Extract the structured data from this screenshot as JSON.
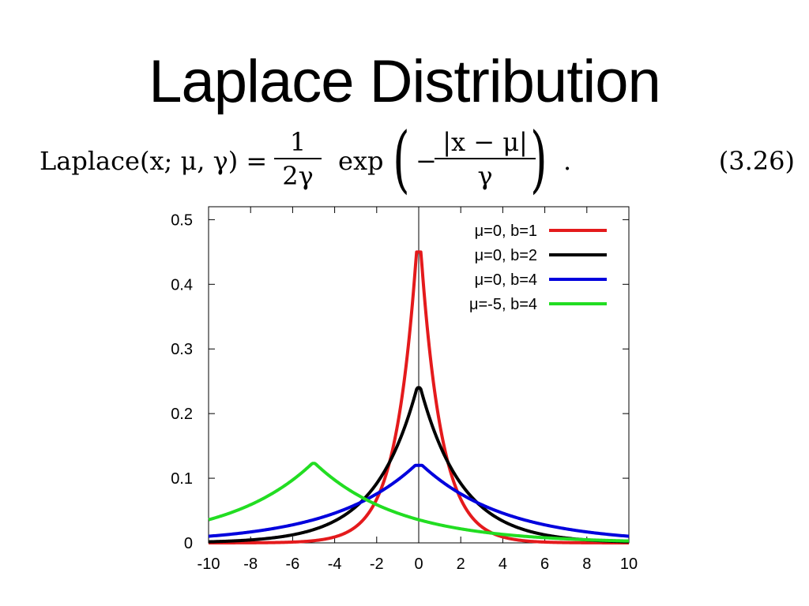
{
  "slide": {
    "title": "Laplace Distribution"
  },
  "equation": {
    "lhs": "Laplace(x; μ, γ) =",
    "frac1_num": "1",
    "frac1_den": "2γ",
    "exp": "exp",
    "minus": "−",
    "frac2_num": "|x − μ|",
    "frac2_den": "γ",
    "end": ".",
    "number": "(3.26)"
  },
  "chart_data": {
    "type": "line",
    "title": "",
    "xlabel": "",
    "ylabel": "",
    "xlim": [
      -10,
      10
    ],
    "ylim": [
      0,
      0.52
    ],
    "xticks": [
      -10,
      -8,
      -6,
      -4,
      -2,
      0,
      2,
      4,
      6,
      8,
      10
    ],
    "xtick_labels": [
      "-10",
      "-8",
      "-6",
      "-4",
      "-2",
      "0",
      "2",
      "4",
      "6",
      "8",
      "10"
    ],
    "yticks": [
      0,
      0.1,
      0.2,
      0.3,
      0.4,
      0.5
    ],
    "ytick_labels": [
      "0",
      "0.1",
      "0.2",
      "0.3",
      "0.4",
      "0.5"
    ],
    "grid": false,
    "legend_position": "top-right",
    "zero_axis_line": true,
    "series": [
      {
        "name": "μ=0, b=1",
        "color": "#e41a1c",
        "mu": 0,
        "b": 1,
        "peak": 0.45,
        "x": [
          -10,
          -6,
          -4,
          -3,
          -2,
          -1,
          0,
          1,
          2,
          3,
          4,
          6,
          10
        ],
        "y": [
          0.0,
          0.001,
          0.009,
          0.025,
          0.068,
          0.184,
          0.45,
          0.184,
          0.068,
          0.025,
          0.009,
          0.001,
          0.0
        ]
      },
      {
        "name": "μ=0, b=2",
        "color": "#000000",
        "mu": 0,
        "b": 2,
        "peak": 0.24,
        "x": [
          -10,
          -8,
          -6,
          -4,
          -2,
          0,
          2,
          4,
          6,
          8,
          10
        ],
        "y": [
          0.002,
          0.004,
          0.012,
          0.032,
          0.088,
          0.24,
          0.088,
          0.032,
          0.012,
          0.004,
          0.002
        ]
      },
      {
        "name": "μ=0, b=4",
        "color": "#0000dd",
        "mu": 0,
        "b": 4,
        "peak": 0.12,
        "x": [
          -10,
          -8,
          -6,
          -4,
          -2,
          0,
          2,
          4,
          6,
          8,
          10
        ],
        "y": [
          0.01,
          0.016,
          0.027,
          0.044,
          0.073,
          0.12,
          0.073,
          0.044,
          0.027,
          0.016,
          0.01
        ]
      },
      {
        "name": "μ=-5, b=4",
        "color": "#22dd22",
        "mu": -5,
        "b": 4,
        "peak": 0.123,
        "x": [
          -10,
          -8,
          -6,
          -5,
          -4,
          -2,
          0,
          2,
          4,
          6,
          8,
          10
        ],
        "y": [
          0.035,
          0.058,
          0.096,
          0.123,
          0.096,
          0.058,
          0.035,
          0.021,
          0.013,
          0.008,
          0.005,
          0.003
        ]
      }
    ]
  }
}
